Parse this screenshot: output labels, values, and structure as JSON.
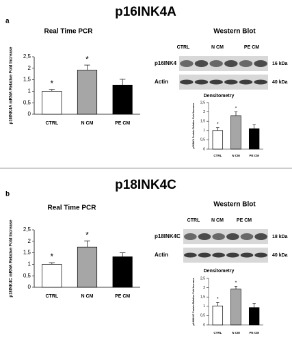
{
  "panels": [
    {
      "letter": "a",
      "title": "p16INK4A",
      "right_title": "Western Blot",
      "lanes": [
        "CTRL",
        "N CM",
        "PE CM"
      ],
      "blots": [
        {
          "label": "p16INK4",
          "size": "16 kDa"
        },
        {
          "label": "Actin",
          "size": "40 kDa"
        }
      ]
    },
    {
      "letter": "b",
      "title": "p18INK4C",
      "right_title": "Western Blot",
      "lanes": [
        "CTRL",
        "N CM",
        "PE CM"
      ],
      "blots": [
        {
          "label": "p18INK4C",
          "size": "18 kDa"
        },
        {
          "label": "Actin",
          "size": "40 kDa"
        }
      ]
    }
  ],
  "chart_data": [
    {
      "type": "bar",
      "title": "Real Time PCR",
      "y_label": "p16INK4A mRNA Relative Fold Increase",
      "categories": [
        "CTRL",
        "N CM",
        "PE CM"
      ],
      "values": [
        1.0,
        1.92,
        1.27
      ],
      "errors": [
        0.08,
        0.22,
        0.25
      ],
      "markers": [
        "*",
        "*",
        null
      ],
      "colors": [
        "#ffffff",
        "#a6a6a6",
        "#000000"
      ],
      "ylim": [
        0,
        2.5
      ],
      "yticks": [
        0,
        {
          "value": 0.5,
          "label": "0,5"
        },
        1,
        {
          "value": 1.5,
          "label": "1,5"
        },
        2,
        {
          "value": 2.5,
          "label": "2,5"
        }
      ]
    },
    {
      "type": "bar",
      "title": "Densitometry",
      "y_label": "p16INK4 Protein Relative Fold Increase",
      "categories": [
        "CTRL",
        "N CM",
        "PE CM"
      ],
      "values": [
        1.0,
        1.8,
        1.1
      ],
      "errors": [
        0.15,
        0.2,
        0.2
      ],
      "markers": [
        "*",
        "*",
        null
      ],
      "colors": [
        "#ffffff",
        "#a6a6a6",
        "#000000"
      ],
      "ylim": [
        0,
        2.5
      ],
      "yticks": [
        0,
        {
          "value": 0.5,
          "label": "0,5"
        },
        1,
        {
          "value": 1.5,
          "label": "1,5"
        },
        2,
        {
          "value": 2.5,
          "label": "2,5"
        }
      ]
    },
    {
      "type": "bar",
      "title": "Real Time PCR",
      "y_label": "p18INK4C mRNA Relative Fold Increase",
      "categories": [
        "CTRL",
        "N CM",
        "PE CM"
      ],
      "values": [
        1.0,
        1.75,
        1.33
      ],
      "errors": [
        0.07,
        0.27,
        0.17
      ],
      "markers": [
        "*",
        "*",
        null
      ],
      "colors": [
        "#ffffff",
        "#a6a6a6",
        "#000000"
      ],
      "ylim": [
        0,
        2.5
      ],
      "yticks": [
        0,
        {
          "value": 0.5,
          "label": "0,5"
        },
        1,
        {
          "value": 1.5,
          "label": "1,5"
        },
        2,
        {
          "value": 2.5,
          "label": "2,5"
        }
      ]
    },
    {
      "type": "bar",
      "title": "Densitometry",
      "y_label": "p18INK4C Protein Relative Fold Increase",
      "categories": [
        "CTRL",
        "N CM",
        "PE CM"
      ],
      "values": [
        1.02,
        1.93,
        0.93
      ],
      "errors": [
        0.18,
        0.15,
        0.22
      ],
      "markers": [
        "*",
        "*",
        null
      ],
      "colors": [
        "#ffffff",
        "#a6a6a6",
        "#000000"
      ],
      "ylim": [
        0,
        2.5
      ],
      "yticks": [
        0,
        {
          "value": 0.5,
          "label": "0,5"
        },
        1,
        {
          "value": 1.5,
          "label": "1,5"
        },
        2,
        {
          "value": 2.5,
          "label": "2,5"
        }
      ]
    }
  ]
}
